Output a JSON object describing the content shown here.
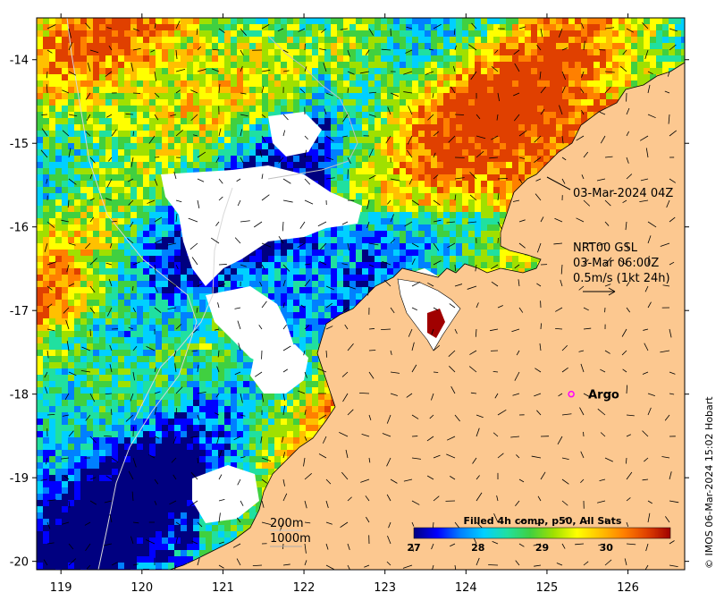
{
  "chart_data": {
    "type": "heatmap",
    "map_kind": "sea surface temperature with current vectors",
    "x_axis": {
      "ticks": [
        119,
        120,
        121,
        122,
        123,
        124,
        125,
        126
      ],
      "range": [
        118.7,
        126.7
      ]
    },
    "y_axis": {
      "ticks": [
        -14,
        -15,
        -16,
        -17,
        -18,
        -19,
        -20
      ],
      "range": [
        -20.1,
        -13.5
      ]
    },
    "colorbar": {
      "title": "Filled 4h comp, p50, All Sats",
      "ticks": [
        27,
        28,
        29,
        30
      ],
      "range": [
        27,
        31
      ],
      "colors": [
        "#000080",
        "#0000ff",
        "#0080ff",
        "#00d0ff",
        "#20e0a0",
        "#40d040",
        "#a0e000",
        "#ffff00",
        "#ffc000",
        "#ff8000",
        "#e04000",
        "#a00000"
      ]
    },
    "land_color": "#fcc890",
    "no_data_color": "#ffffff",
    "annotations": {
      "timestamp": "03-Mar-2024 04Z",
      "vector_source": "NRT00 GSL",
      "vector_time": "03-Mar 06:00Z",
      "vector_scale": "0.5m/s (1kt 24h)",
      "argo_label": "Argo",
      "contour_200": "200m",
      "contour_1000": "1000m",
      "credit": "© IMOS 06-Mar-2024 15:02 Hobart"
    },
    "features": {
      "argo_float": {
        "lon": 125.3,
        "lat": -18.0,
        "color": "#ff00ff"
      }
    }
  }
}
